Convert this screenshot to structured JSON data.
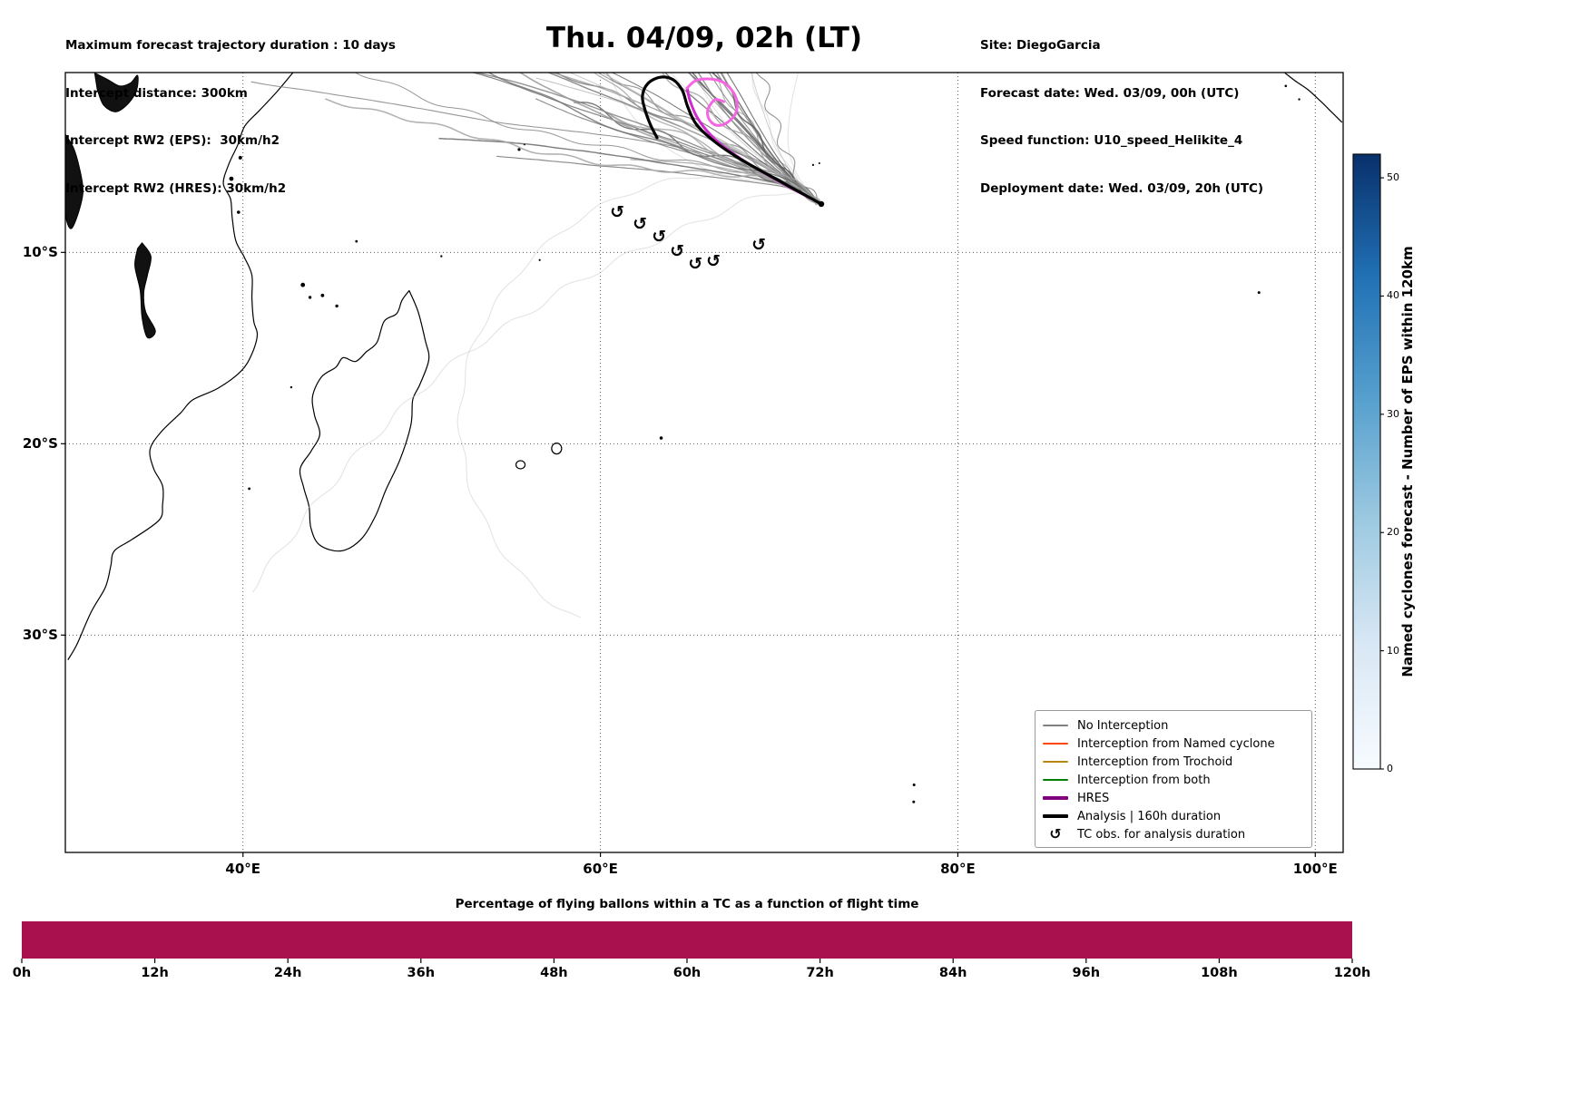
{
  "figure": {
    "header_left": [
      "Maximum forecast trajectory duration : 10 days",
      "Intercept distance: 300km",
      "Intercept RW2 (EPS):  30km/h2",
      "Intercept RW2 (HRES): 30km/h2"
    ],
    "title": "Thu. 04/09, 02h (LT)",
    "header_right": [
      "Site: DiegoGarcia",
      "Forecast date: Wed. 03/09, 00h (UTC)",
      "Speed function: U10_speed_Helikite_4",
      "Deployment date: Wed. 03/09, 20h (UTC)"
    ]
  },
  "map": {
    "extent": {
      "lon_min": 30.06,
      "lon_max": 101.56,
      "lat_min": -41.36,
      "lat_max": -0.6
    },
    "lon_ticks": [
      {
        "value": 40,
        "label": "40°E"
      },
      {
        "value": 60,
        "label": "60°E"
      },
      {
        "value": 80,
        "label": "80°E"
      },
      {
        "value": 100,
        "label": "100°E"
      }
    ],
    "lat_ticks": [
      {
        "value": -10,
        "label": "10°S"
      },
      {
        "value": -20,
        "label": "20°S"
      },
      {
        "value": -30,
        "label": "30°S"
      }
    ],
    "coastlines": {
      "africa_east_coast": [
        [
          42.8,
          -0.6
        ],
        [
          41.9,
          -1.6
        ],
        [
          40.9,
          -2.6
        ],
        [
          40.1,
          -3.4
        ],
        [
          39.7,
          -4.4
        ],
        [
          39.2,
          -5.4
        ],
        [
          38.9,
          -6.4
        ],
        [
          39.3,
          -7.2
        ],
        [
          39.4,
          -8.2
        ],
        [
          39.6,
          -9.4
        ],
        [
          40.1,
          -10.3
        ],
        [
          40.5,
          -11.2
        ],
        [
          40.5,
          -12.4
        ],
        [
          40.6,
          -13.6
        ],
        [
          40.8,
          -14.3
        ],
        [
          40.5,
          -15.3
        ],
        [
          39.9,
          -16.2
        ],
        [
          38.6,
          -17.1
        ],
        [
          37.2,
          -17.7
        ],
        [
          36.5,
          -18.4
        ],
        [
          35.4,
          -19.4
        ],
        [
          34.8,
          -20.3
        ],
        [
          35.0,
          -21.3
        ],
        [
          35.5,
          -22.2
        ],
        [
          35.5,
          -23.2
        ],
        [
          35.3,
          -24.0
        ],
        [
          33.8,
          -25.0
        ],
        [
          32.8,
          -25.6
        ],
        [
          32.6,
          -26.4
        ],
        [
          32.3,
          -27.5
        ],
        [
          31.5,
          -28.8
        ],
        [
          30.7,
          -30.5
        ],
        [
          30.2,
          -31.3
        ]
      ],
      "madagascar": [
        [
          49.3,
          -12.0
        ],
        [
          49.8,
          -13.1
        ],
        [
          50.2,
          -14.6
        ],
        [
          50.4,
          -15.6
        ],
        [
          49.9,
          -16.9
        ],
        [
          49.5,
          -17.7
        ],
        [
          49.4,
          -19.0
        ],
        [
          48.8,
          -20.8
        ],
        [
          48.0,
          -22.4
        ],
        [
          47.4,
          -23.8
        ],
        [
          46.6,
          -25.0
        ],
        [
          45.5,
          -25.6
        ],
        [
          44.3,
          -25.3
        ],
        [
          43.8,
          -24.4
        ],
        [
          43.7,
          -23.3
        ],
        [
          43.4,
          -22.3
        ],
        [
          43.2,
          -21.3
        ],
        [
          43.8,
          -20.4
        ],
        [
          44.3,
          -19.5
        ],
        [
          44.0,
          -18.5
        ],
        [
          43.9,
          -17.5
        ],
        [
          44.4,
          -16.5
        ],
        [
          45.2,
          -16.0
        ],
        [
          45.6,
          -15.5
        ],
        [
          46.3,
          -15.7
        ],
        [
          46.9,
          -15.2
        ],
        [
          47.5,
          -14.7
        ],
        [
          47.9,
          -13.6
        ],
        [
          48.6,
          -13.2
        ],
        [
          48.9,
          -12.5
        ],
        [
          49.3,
          -12.0
        ]
      ],
      "sumatra": [
        [
          98.3,
          -0.62
        ],
        [
          98.9,
          -1.05
        ],
        [
          99.6,
          -1.5
        ],
        [
          100.3,
          -2.1
        ],
        [
          100.9,
          -2.65
        ],
        [
          101.5,
          -3.2
        ]
      ],
      "lakes": {
        "victoria": [
          [
            31.7,
            -0.62
          ],
          [
            32.4,
            -0.95
          ],
          [
            33.1,
            -1.3
          ],
          [
            33.7,
            -1.15
          ],
          [
            34.1,
            -0.75
          ],
          [
            34.05,
            -1.5
          ],
          [
            33.6,
            -2.2
          ],
          [
            32.9,
            -2.65
          ],
          [
            32.2,
            -2.3
          ],
          [
            31.85,
            -1.5
          ]
        ],
        "tanganyika": [
          [
            29.9,
            -3.6
          ],
          [
            30.5,
            -4.5
          ],
          [
            30.85,
            -5.6
          ],
          [
            31.05,
            -6.8
          ],
          [
            30.8,
            -7.9
          ],
          [
            30.4,
            -8.75
          ],
          [
            30.1,
            -8.2
          ],
          [
            30.0,
            -6.8
          ],
          [
            29.85,
            -5.2
          ],
          [
            29.75,
            -4.0
          ]
        ],
        "malawi": [
          [
            34.35,
            -9.5
          ],
          [
            34.85,
            -10.2
          ],
          [
            34.65,
            -11.2
          ],
          [
            34.45,
            -12.1
          ],
          [
            34.55,
            -13.1
          ],
          [
            35.1,
            -14.1
          ],
          [
            34.65,
            -14.45
          ],
          [
            34.35,
            -13.4
          ],
          [
            34.25,
            -12.0
          ],
          [
            33.95,
            -10.7
          ],
          [
            34.1,
            -9.8
          ]
        ]
      },
      "island_dots": [
        [
          39.85,
          -5.05,
          2
        ],
        [
          39.35,
          -6.15,
          2.4
        ],
        [
          39.75,
          -7.9,
          1.8
        ],
        [
          43.35,
          -11.7,
          2.4
        ],
        [
          43.75,
          -12.35,
          1.7
        ],
        [
          44.45,
          -12.25,
          1.9
        ],
        [
          45.25,
          -12.8,
          1.7
        ],
        [
          55.45,
          -4.62,
          1.6
        ],
        [
          55.75,
          -4.35,
          1.2
        ],
        [
          46.35,
          -9.42,
          1.4
        ],
        [
          51.1,
          -10.2,
          1.2
        ],
        [
          56.6,
          -10.4,
          1.1
        ],
        [
          63.4,
          -19.7,
          1.8
        ],
        [
          77.55,
          -37.83,
          1.5
        ],
        [
          77.53,
          -38.72,
          1.5
        ],
        [
          96.85,
          -12.1,
          1.5
        ],
        [
          71.9,
          -5.43,
          1.1
        ],
        [
          72.25,
          -5.34,
          1.0
        ],
        [
          98.35,
          -1.3,
          1.3
        ],
        [
          99.1,
          -2.0,
          1.2
        ],
        [
          42.7,
          -17.05,
          1.2
        ],
        [
          40.35,
          -22.35,
          1.4
        ]
      ],
      "island_outlines": [
        {
          "name": "mauritius",
          "lon": 57.55,
          "lat": -20.25,
          "rx": 5.5,
          "ry": 6
        },
        {
          "name": "reunion",
          "lon": 55.53,
          "lat": -21.1,
          "rx": 5,
          "ry": 4.5
        }
      ]
    }
  },
  "legend": {
    "items": [
      {
        "label": "No Interception",
        "type": "line",
        "color": "#808080",
        "width": 1.5
      },
      {
        "label": "Interception from Named cyclone",
        "type": "line",
        "color": "#ff4500",
        "width": 1.5
      },
      {
        "label": "Interception from Trochoid",
        "type": "line",
        "color": "#b8860b",
        "width": 1.5
      },
      {
        "label": "Interception from both",
        "type": "line",
        "color": "#008000",
        "width": 1.5
      },
      {
        "label": "HRES",
        "type": "line",
        "color": "#800080",
        "width": 3.5
      },
      {
        "label": "Analysis | 160h duration",
        "type": "line",
        "color": "#000000",
        "width": 3.5
      },
      {
        "label": "TC obs. for analysis duration",
        "type": "symbol",
        "symbol": "↺",
        "color": "#000000"
      }
    ]
  },
  "colorbar": {
    "label": "Named cyclones forecast - Number of EPS within 120km",
    "vmin": 0,
    "vmax": 52,
    "ticks": [
      0,
      10,
      20,
      30,
      40,
      50
    ],
    "stops_bottom_to_top": [
      "#f7fbff",
      "#d9e8f5",
      "#9ecae1",
      "#57a0ce",
      "#2171b5",
      "#08306b"
    ]
  },
  "bottom_chart": {
    "title": "Percentage of flying ballons within a TC as a function of flight time",
    "tick_hours": [
      0,
      12,
      24,
      36,
      48,
      60,
      72,
      84,
      96,
      108,
      120
    ],
    "tick_labels": [
      "0h",
      "12h",
      "24h",
      "36h",
      "48h",
      "60h",
      "72h",
      "84h",
      "96h",
      "108h",
      "120h"
    ],
    "bar_color": "#a8104e"
  },
  "chart_data": [
    {
      "type": "line",
      "name": "tc_forecast_trajectory_map",
      "title": "Thu. 04/09, 02h (LT)",
      "lon_range": [
        30.06,
        101.56
      ],
      "lat_range": [
        -41.36,
        -0.6
      ],
      "grid": true,
      "start_point_lonlat": [
        72.36,
        -7.47
      ],
      "analysis_track_lonlat": [
        [
          72.36,
          -7.47
        ],
        [
          70.07,
          -6.29
        ],
        [
          68.04,
          -5.24
        ],
        [
          66.52,
          -4.3
        ],
        [
          65.4,
          -3.35
        ],
        [
          64.89,
          -2.4
        ],
        [
          64.59,
          -1.55
        ],
        [
          64.08,
          -0.98
        ],
        [
          63.37,
          -0.84
        ],
        [
          62.66,
          -1.17
        ],
        [
          62.35,
          -1.83
        ],
        [
          62.51,
          -2.59
        ],
        [
          62.81,
          -3.35
        ],
        [
          63.17,
          -4.01
        ]
      ],
      "hres_track_lonlat": [
        [
          72.36,
          -7.47
        ],
        [
          70.18,
          -6.38
        ],
        [
          68.25,
          -5.34
        ],
        [
          66.78,
          -4.39
        ],
        [
          65.91,
          -3.59
        ],
        [
          65.35,
          -2.83
        ],
        [
          65.0,
          -2.02
        ],
        [
          64.85,
          -1.41
        ],
        [
          65.31,
          -1.03
        ],
        [
          66.02,
          -0.93
        ],
        [
          66.78,
          -1.07
        ],
        [
          67.34,
          -1.5
        ],
        [
          67.64,
          -2.12
        ],
        [
          67.54,
          -2.78
        ],
        [
          67.03,
          -3.25
        ],
        [
          66.47,
          -3.35
        ],
        [
          66.07,
          -3.02
        ],
        [
          66.02,
          -2.5
        ],
        [
          66.42,
          -2.02
        ],
        [
          66.9,
          -2.12
        ]
      ],
      "hres_bright_segment_from_index": 7,
      "hres_color": "#cf2bcf",
      "hres_bright_color": "#f565e2",
      "analysis_color": "#000000",
      "tc_obs_lonlat": [
        [
          60.94,
          -7.9
        ],
        [
          62.21,
          -8.51
        ],
        [
          63.28,
          -9.18
        ],
        [
          64.29,
          -9.94
        ],
        [
          65.31,
          -10.6
        ],
        [
          66.32,
          -10.46
        ],
        [
          68.86,
          -9.6
        ]
      ],
      "ensemble": {
        "members": 46,
        "n_light_outliers": 7,
        "seed": 987654,
        "color_light": "#c9c9c9"
      }
    },
    {
      "type": "bar",
      "name": "balloon_tc_percentage",
      "title": "Percentage of flying ballons within a TC as a function of flight time",
      "x_unit": "hours",
      "x_ticks": [
        0,
        12,
        24,
        36,
        48,
        60,
        72,
        84,
        96,
        108,
        120
      ],
      "bars": [
        {
          "x_start": 0,
          "x_end": 120,
          "value_percent": 100
        }
      ],
      "color": "#a8104e"
    }
  ]
}
